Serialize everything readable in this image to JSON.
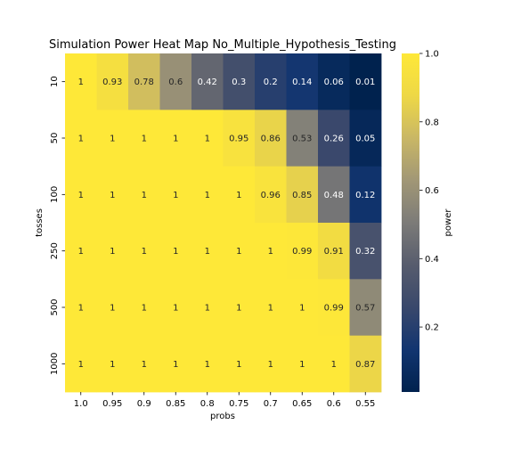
{
  "chart_data": {
    "type": "heatmap",
    "title": "Simulation Power Heat Map No_Multiple_Hypothesis_Testing",
    "xlabel": "probs",
    "ylabel": "tosses",
    "x_categories": [
      "1.0",
      "0.95",
      "0.9",
      "0.85",
      "0.8",
      "0.75",
      "0.7",
      "0.65",
      "0.6",
      "0.55"
    ],
    "y_categories": [
      "10",
      "50",
      "100",
      "250",
      "500",
      "1000"
    ],
    "values": [
      [
        1,
        0.93,
        0.78,
        0.6,
        0.42,
        0.3,
        0.2,
        0.14,
        0.06,
        0.01
      ],
      [
        1,
        1,
        1,
        1,
        1,
        0.95,
        0.86,
        0.53,
        0.26,
        0.05
      ],
      [
        1,
        1,
        1,
        1,
        1,
        1,
        0.96,
        0.85,
        0.48,
        0.12
      ],
      [
        1,
        1,
        1,
        1,
        1,
        1,
        1,
        0.99,
        0.91,
        0.32
      ],
      [
        1,
        1,
        1,
        1,
        1,
        1,
        1,
        1,
        0.99,
        0.57
      ],
      [
        1,
        1,
        1,
        1,
        1,
        1,
        1,
        1,
        1,
        0.87
      ]
    ],
    "colorbar": {
      "label": "power",
      "colormap": "cividis",
      "range": [
        0.01,
        1.0
      ],
      "ticks": [
        "0.2",
        "0.4",
        "0.6",
        "0.8",
        "1.0"
      ]
    }
  }
}
